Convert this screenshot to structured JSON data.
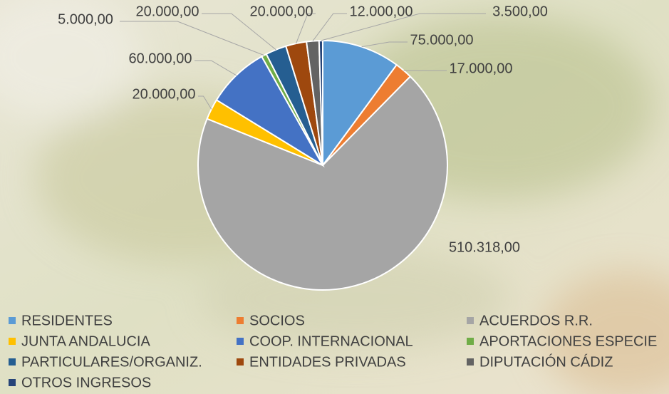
{
  "chart_data": {
    "type": "pie",
    "categories": [
      "RESIDENTES",
      "SOCIOS",
      "ACUERDOS R.R.",
      "JUNTA ANDALUCIA",
      "COOP. INTERNACIONAL",
      "APORTACIONES ESPECIE",
      "PARTICULARES/ORGANIZ.",
      "ENTIDADES PRIVADAS",
      "DIPUTACIÓN CÁDIZ",
      "OTROS INGRESOS"
    ],
    "values": [
      75000,
      17000,
      510318,
      20000,
      60000,
      5000,
      20000,
      20000,
      12000,
      3500
    ],
    "value_labels": [
      "75.000,00",
      "17.000,00",
      "510.318,00",
      "20.000,00",
      "60.000,00",
      "5.000,00",
      "20.000,00",
      "20.000,00",
      "12.000,00",
      "3.500,00"
    ],
    "colors": [
      "#5b9bd5",
      "#ed7d31",
      "#a5a5a5",
      "#ffc000",
      "#4472c4",
      "#70ad47",
      "#255e91",
      "#9e480e",
      "#636363",
      "#264478"
    ],
    "legend": "bottom"
  }
}
